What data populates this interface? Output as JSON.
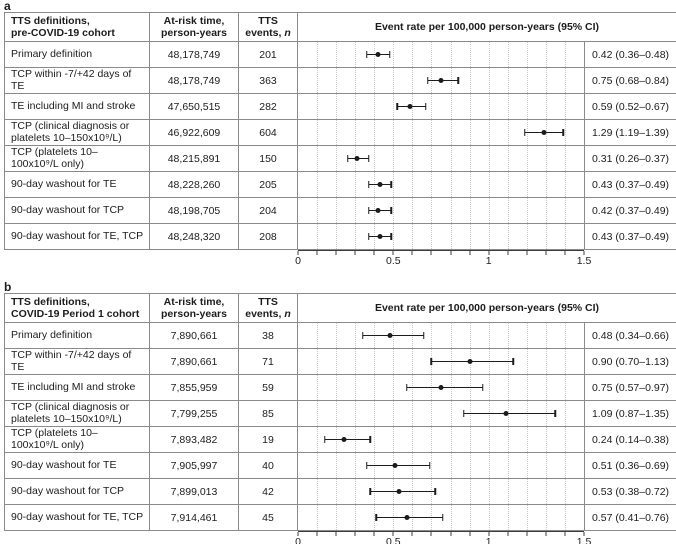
{
  "colors": {
    "border": "#8a8a8a",
    "grid_dotted": "#c9c9c9",
    "marker": "#1c1c1c",
    "axis": "#3c3c3c",
    "background": "#ffffff"
  },
  "panels": [
    {
      "label": "a",
      "col1_header": "TTS definitions,\npre-COVID-19 cohort",
      "col2_header": "At-risk time,\nperson-years",
      "col3_header_line1": "TTS",
      "col3_header_line2": "events, ",
      "col3_header_italic": "n",
      "plot_header": "Event rate per 100,000 person-years (95% CI)",
      "rows": [
        {
          "definition": "Primary definition",
          "at_risk": "48,178,749",
          "events": "201",
          "rate": 0.42,
          "lo": 0.36,
          "hi": 0.48,
          "ci_text": "0.42 (0.36–0.48)"
        },
        {
          "definition": "TCP within -7/+42 days of TE",
          "at_risk": "48,178,749",
          "events": "363",
          "rate": 0.75,
          "lo": 0.68,
          "hi": 0.84,
          "ci_text": "0.75 (0.68–0.84)"
        },
        {
          "definition": "TE including MI and stroke",
          "at_risk": "47,650,515",
          "events": "282",
          "rate": 0.59,
          "lo": 0.52,
          "hi": 0.67,
          "ci_text": "0.59 (0.52–0.67)"
        },
        {
          "definition": "TCP (clinical diagnosis or platelets 10–150x10⁹/L)",
          "at_risk": "46,922,609",
          "events": "604",
          "rate": 1.29,
          "lo": 1.19,
          "hi": 1.39,
          "ci_text": "1.29 (1.19–1.39)"
        },
        {
          "definition": "TCP (platelets 10–100x10⁹/L only)",
          "at_risk": "48,215,891",
          "events": "150",
          "rate": 0.31,
          "lo": 0.26,
          "hi": 0.37,
          "ci_text": "0.31 (0.26–0.37)"
        },
        {
          "definition": "90-day washout for TE",
          "at_risk": "48,228,260",
          "events": "205",
          "rate": 0.43,
          "lo": 0.37,
          "hi": 0.49,
          "ci_text": "0.43 (0.37–0.49)"
        },
        {
          "definition": "90-day washout for TCP",
          "at_risk": "48,198,705",
          "events": "204",
          "rate": 0.42,
          "lo": 0.37,
          "hi": 0.49,
          "ci_text": "0.42 (0.37–0.49)"
        },
        {
          "definition": "90-day washout for TE, TCP",
          "at_risk": "48,248,320",
          "events": "208",
          "rate": 0.43,
          "lo": 0.37,
          "hi": 0.49,
          "ci_text": "0.43 (0.37–0.49)"
        }
      ],
      "axis": {
        "min": 0,
        "max": 1.5,
        "minor_step": 0.1,
        "major_ticks": [
          {
            "v": 0,
            "label": "0"
          },
          {
            "v": 0.5,
            "label": "0.5"
          },
          {
            "v": 1,
            "label": "1"
          },
          {
            "v": 1.5,
            "label": "1.5"
          }
        ]
      }
    },
    {
      "label": "b",
      "col1_header": "TTS definitions,\nCOVID-19 Period 1 cohort",
      "col2_header": "At-risk time,\nperson-years",
      "col3_header_line1": "TTS",
      "col3_header_line2": "events, ",
      "col3_header_italic": "n",
      "plot_header": "Event rate per 100,000 person-years (95% CI)",
      "rows": [
        {
          "definition": "Primary definition",
          "at_risk": "7,890,661",
          "events": "38",
          "rate": 0.48,
          "lo": 0.34,
          "hi": 0.66,
          "ci_text": "0.48 (0.34–0.66)"
        },
        {
          "definition": "TCP within -7/+42 days of TE",
          "at_risk": "7,890,661",
          "events": "71",
          "rate": 0.9,
          "lo": 0.7,
          "hi": 1.13,
          "ci_text": "0.90 (0.70–1.13)"
        },
        {
          "definition": "TE including MI and stroke",
          "at_risk": "7,855,959",
          "events": "59",
          "rate": 0.75,
          "lo": 0.57,
          "hi": 0.97,
          "ci_text": "0.75 (0.57–0.97)"
        },
        {
          "definition": "TCP (clinical diagnosis or platelets 10–150x10⁹/L)",
          "at_risk": "7,799,255",
          "events": "85",
          "rate": 1.09,
          "lo": 0.87,
          "hi": 1.35,
          "ci_text": "1.09 (0.87–1.35)"
        },
        {
          "definition": "TCP (platelets 10–100x10⁹/L only)",
          "at_risk": "7,893,482",
          "events": "19",
          "rate": 0.24,
          "lo": 0.14,
          "hi": 0.38,
          "ci_text": "0.24 (0.14–0.38)"
        },
        {
          "definition": "90-day washout for TE",
          "at_risk": "7,905,997",
          "events": "40",
          "rate": 0.51,
          "lo": 0.36,
          "hi": 0.69,
          "ci_text": "0.51 (0.36–0.69)"
        },
        {
          "definition": "90-day washout for TCP",
          "at_risk": "7,899,013",
          "events": "42",
          "rate": 0.53,
          "lo": 0.38,
          "hi": 0.72,
          "ci_text": "0.53 (0.38–0.72)"
        },
        {
          "definition": "90-day washout for TE, TCP",
          "at_risk": "7,914,461",
          "events": "45",
          "rate": 0.57,
          "lo": 0.41,
          "hi": 0.76,
          "ci_text": "0.57 (0.41–0.76)"
        }
      ],
      "axis": {
        "min": 0,
        "max": 1.5,
        "minor_step": 0.1,
        "major_ticks": [
          {
            "v": 0,
            "label": "0"
          },
          {
            "v": 0.5,
            "label": "0.5"
          },
          {
            "v": 1,
            "label": "1"
          },
          {
            "v": 1.5,
            "label": "1.5"
          }
        ]
      }
    }
  ],
  "chart_data": [
    {
      "type": "scatter",
      "subtype": "forest-plot",
      "panel": "a",
      "title": "Event rate per 100,000 person-years (95% CI)",
      "categories": [
        "Primary definition",
        "TCP within -7/+42 days of TE",
        "TE including MI and stroke",
        "TCP (clinical diagnosis or platelets 10–150x10⁹/L)",
        "TCP (platelets 10–100x10⁹/L only)",
        "90-day washout for TE",
        "90-day washout for TCP",
        "90-day washout for TE, TCP"
      ],
      "values": [
        0.42,
        0.75,
        0.59,
        1.29,
        0.31,
        0.43,
        0.42,
        0.43
      ],
      "ci_low": [
        0.36,
        0.68,
        0.52,
        1.19,
        0.26,
        0.37,
        0.37,
        0.37
      ],
      "ci_high": [
        0.48,
        0.84,
        0.67,
        1.39,
        0.37,
        0.49,
        0.49,
        0.49
      ],
      "xlim": [
        0,
        1.5
      ],
      "xticks": [
        0,
        0.5,
        1,
        1.5
      ],
      "minor_tick_step": 0.1,
      "grid": "vertical dotted lines every 0.1",
      "marker": "filled black circle with capped horizontal CI whiskers",
      "legend": "none"
    },
    {
      "type": "scatter",
      "subtype": "forest-plot",
      "panel": "b",
      "title": "Event rate per 100,000 person-years (95% CI)",
      "categories": [
        "Primary definition",
        "TCP within -7/+42 days of TE",
        "TE including MI and stroke",
        "TCP (clinical diagnosis or platelets 10–150x10⁹/L)",
        "TCP (platelets 10–100x10⁹/L only)",
        "90-day washout for TE",
        "90-day washout for TCP",
        "90-day washout for TE, TCP"
      ],
      "values": [
        0.48,
        0.9,
        0.75,
        1.09,
        0.24,
        0.51,
        0.53,
        0.57
      ],
      "ci_low": [
        0.34,
        0.7,
        0.57,
        0.87,
        0.14,
        0.36,
        0.38,
        0.41
      ],
      "ci_high": [
        0.66,
        1.13,
        0.97,
        1.35,
        0.38,
        0.69,
        0.76,
        0.76
      ],
      "xlim": [
        0,
        1.5
      ],
      "xticks": [
        0,
        0.5,
        1,
        1.5
      ],
      "minor_tick_step": 0.1,
      "grid": "vertical dotted lines every 0.1",
      "marker": "filled black circle with capped horizontal CI whiskers",
      "legend": "none"
    }
  ]
}
